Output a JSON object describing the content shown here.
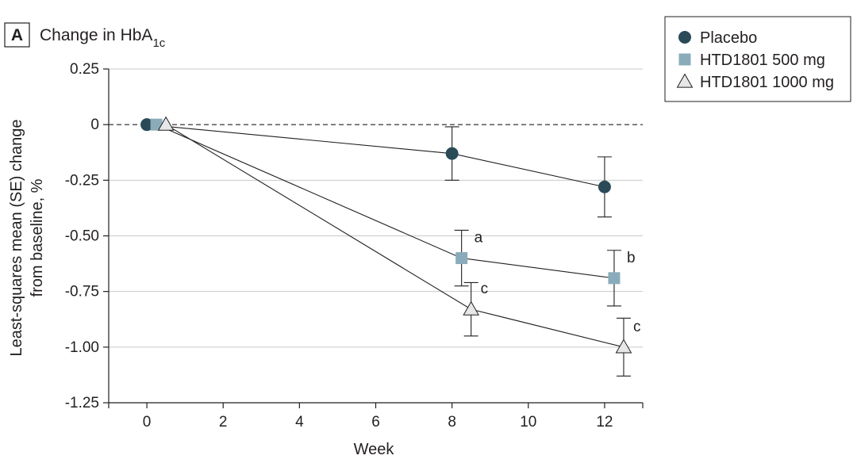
{
  "panel": {
    "letter": "A",
    "title_prefix": "Change in HbA",
    "title_subscript": "1c"
  },
  "chart_data": {
    "type": "line",
    "xlabel": "Week",
    "ylabel_line1": "Least-squares mean (SE) change",
    "ylabel_line2": "from baseline, %",
    "xlim": [
      -1,
      13
    ],
    "ylim": [
      -1.25,
      0.25
    ],
    "x_ticks": [
      0,
      2,
      4,
      6,
      8,
      10,
      12
    ],
    "x_tick_labels": [
      "0",
      "2",
      "4",
      "6",
      "8",
      "10",
      "12"
    ],
    "y_ticks": [
      0.25,
      0,
      -0.25,
      -0.5,
      -0.75,
      -1.0,
      -1.25
    ],
    "y_tick_labels": [
      "0.25",
      "0",
      "-0.25",
      "-0.50",
      "-0.75",
      "-1.00",
      "-1.25"
    ],
    "grid": "horizontal",
    "reference_line_y": 0,
    "legend_position": "top-right",
    "series": [
      {
        "name": "Placebo",
        "marker": "circle",
        "color": "#2b4a57",
        "x": [
          0,
          8,
          12
        ],
        "y": [
          0,
          -0.13,
          -0.28
        ],
        "se": [
          0,
          0.12,
          0.135
        ],
        "sig_labels": [
          "",
          "",
          ""
        ]
      },
      {
        "name": "HTD1801 500 mg",
        "marker": "square",
        "color": "#8aacba",
        "x": [
          0,
          8,
          12
        ],
        "y": [
          0,
          -0.6,
          -0.69
        ],
        "se": [
          0,
          0.125,
          0.125
        ],
        "sig_labels": [
          "",
          "a",
          "b"
        ]
      },
      {
        "name": "HTD1801 1000 mg",
        "marker": "triangle",
        "color": "#e6e7e8",
        "x": [
          0,
          8,
          12
        ],
        "y": [
          0,
          -0.83,
          -1.0
        ],
        "se": [
          0,
          0.12,
          0.13
        ],
        "sig_labels": [
          "",
          "c",
          "c"
        ]
      }
    ]
  }
}
